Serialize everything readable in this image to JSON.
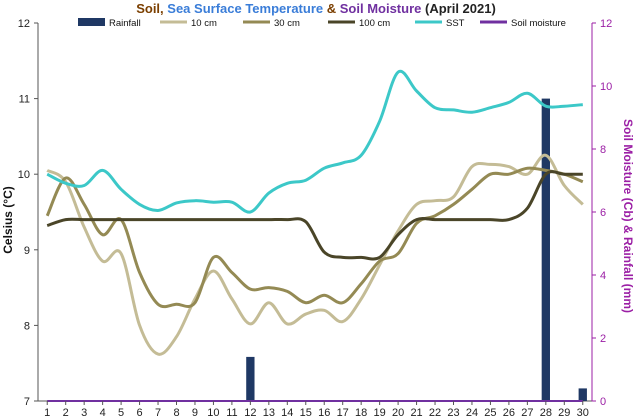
{
  "chart_data": {
    "type": "line",
    "title_parts": [
      {
        "text": "Soil",
        "color": "#7b3f00"
      },
      {
        "text": ", ",
        "color": "#7b3f00"
      },
      {
        "text": "Sea Surface Temperature",
        "color": "#3a7dd8"
      },
      {
        "text": " & ",
        "color": "#7b3f00"
      },
      {
        "text": "Soil Moisture",
        "color": "#7030a0"
      },
      {
        "text": " (April 2021)",
        "color": "#222222"
      }
    ],
    "ylabel_left": "Celsius (°C)",
    "ylabel_right": "Soil Moisture (Cb) & Rainfall (mm)",
    "ylabel_right_color": "#9b1fa5",
    "x": [
      1,
      2,
      3,
      4,
      5,
      6,
      7,
      8,
      9,
      10,
      11,
      12,
      13,
      14,
      15,
      16,
      17,
      18,
      19,
      20,
      21,
      22,
      23,
      24,
      25,
      26,
      27,
      28,
      29,
      30
    ],
    "ylim_left": [
      7,
      12
    ],
    "yticks_left": [
      7,
      8,
      9,
      10,
      11,
      12
    ],
    "ylim_right": [
      0,
      12
    ],
    "yticks_right": [
      0,
      2,
      4,
      6,
      8,
      10,
      12
    ],
    "grid": false,
    "legend_position": "top",
    "rainfall": {
      "name": "Rainfall",
      "color": "#1f3864",
      "axis": "right",
      "values": [
        0,
        0,
        0,
        0,
        0,
        0,
        0,
        0,
        0,
        0,
        0,
        1.4,
        0,
        0,
        0,
        0,
        0,
        0,
        0,
        0,
        0,
        0,
        0,
        0,
        0,
        0,
        0,
        9.6,
        0,
        0.4
      ]
    },
    "series": [
      {
        "name": "10 cm",
        "color": "#c4bc96",
        "axis": "left",
        "values": [
          10.05,
          9.9,
          9.3,
          8.85,
          8.95,
          8.0,
          7.62,
          7.85,
          8.35,
          8.72,
          8.35,
          8.02,
          8.3,
          8.02,
          8.15,
          8.2,
          8.05,
          8.35,
          8.8,
          9.25,
          9.6,
          9.65,
          9.7,
          10.1,
          10.13,
          10.1,
          10.0,
          10.25,
          9.85,
          9.6
        ]
      },
      {
        "name": "30 cm",
        "color": "#948a54",
        "axis": "left",
        "values": [
          9.45,
          9.95,
          9.6,
          9.2,
          9.4,
          8.7,
          8.28,
          8.28,
          8.3,
          8.9,
          8.7,
          8.48,
          8.5,
          8.45,
          8.3,
          8.4,
          8.3,
          8.55,
          8.85,
          8.95,
          9.35,
          9.45,
          9.6,
          9.8,
          10.0,
          10.0,
          10.08,
          10.05,
          10.0,
          9.9
        ]
      },
      {
        "name": "100 cm",
        "color": "#4a4528",
        "axis": "left",
        "values": [
          9.32,
          9.4,
          9.4,
          9.4,
          9.4,
          9.4,
          9.4,
          9.4,
          9.4,
          9.4,
          9.4,
          9.4,
          9.4,
          9.4,
          9.37,
          8.97,
          8.9,
          8.9,
          8.9,
          9.2,
          9.4,
          9.4,
          9.4,
          9.4,
          9.4,
          9.4,
          9.55,
          10.0,
          10.0,
          10.0
        ]
      },
      {
        "name": "SST",
        "color": "#3cc8c8",
        "axis": "left",
        "values": [
          10.0,
          9.88,
          9.85,
          10.05,
          9.8,
          9.6,
          9.52,
          9.62,
          9.65,
          9.63,
          9.63,
          9.5,
          9.75,
          9.88,
          9.92,
          10.08,
          10.15,
          10.25,
          10.7,
          11.35,
          11.1,
          10.88,
          10.85,
          10.82,
          10.88,
          10.95,
          11.07,
          10.9,
          10.9,
          10.92
        ]
      },
      {
        "name": "Soil moisture",
        "color": "#7030a0",
        "axis": "right",
        "values": [
          0,
          0,
          0,
          0,
          0,
          0,
          0,
          0,
          0,
          0,
          0,
          0,
          0,
          0,
          0,
          0,
          0,
          0,
          0,
          0,
          0,
          0,
          0,
          0,
          0,
          0,
          0,
          0,
          0,
          0
        ]
      }
    ]
  }
}
